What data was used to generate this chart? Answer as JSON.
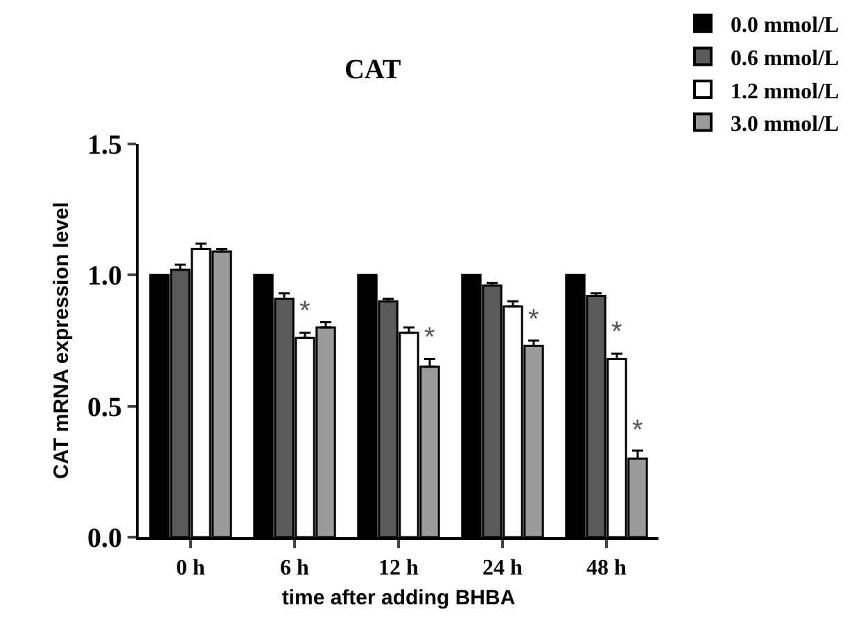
{
  "chart_data": {
    "type": "bar",
    "title": "CAT",
    "xlabel": "time after adding BHBA",
    "ylabel": "CAT mRNA expression level",
    "categories": [
      "0 h",
      "6 h",
      "12 h",
      "24 h",
      "48 h"
    ],
    "series": [
      {
        "name": "0.0 mmol/L",
        "color": "#000000",
        "values": [
          1.0,
          1.0,
          1.0,
          1.0,
          1.0
        ]
      },
      {
        "name": "0.6 mmol/L",
        "color": "#5a5a5a",
        "values": [
          1.02,
          0.91,
          0.9,
          0.96,
          0.92
        ],
        "errors": [
          [
            1.02,
            1.04
          ],
          [
            0.91,
            0.93
          ],
          [
            0.9,
            0.91
          ],
          [
            0.96,
            0.97
          ],
          [
            0.92,
            0.93
          ]
        ]
      },
      {
        "name": "1.2 mmol/L",
        "color": "#ffffff",
        "values": [
          1.1,
          0.76,
          0.78,
          0.88,
          0.68
        ],
        "errors": [
          [
            1.1,
            1.12
          ],
          [
            0.76,
            0.78
          ],
          [
            0.78,
            0.8
          ],
          [
            0.88,
            0.9
          ],
          [
            0.68,
            0.7
          ]
        ],
        "value_labels": [
          null,
          "*",
          null,
          null,
          "*"
        ]
      },
      {
        "name": "3.0 mmol/L",
        "color": "#9a9a9a",
        "values": [
          1.09,
          0.8,
          0.65,
          0.73,
          0.3
        ],
        "errors": [
          [
            1.09,
            1.1
          ],
          [
            0.8,
            0.82
          ],
          [
            0.65,
            0.68
          ],
          [
            0.73,
            0.75
          ],
          [
            0.3,
            0.33
          ]
        ],
        "value_labels": [
          null,
          null,
          "*",
          "*",
          "*"
        ]
      }
    ],
    "ylim": [
      0,
      1.5
    ],
    "yticks": [
      {
        "value": 0,
        "label": "0.0"
      },
      {
        "value": 0.5,
        "label": "0.5"
      },
      {
        "value": 1,
        "label": "1.0"
      },
      {
        "value": 1.5,
        "label": "1.5"
      }
    ],
    "legend": "top right"
  }
}
